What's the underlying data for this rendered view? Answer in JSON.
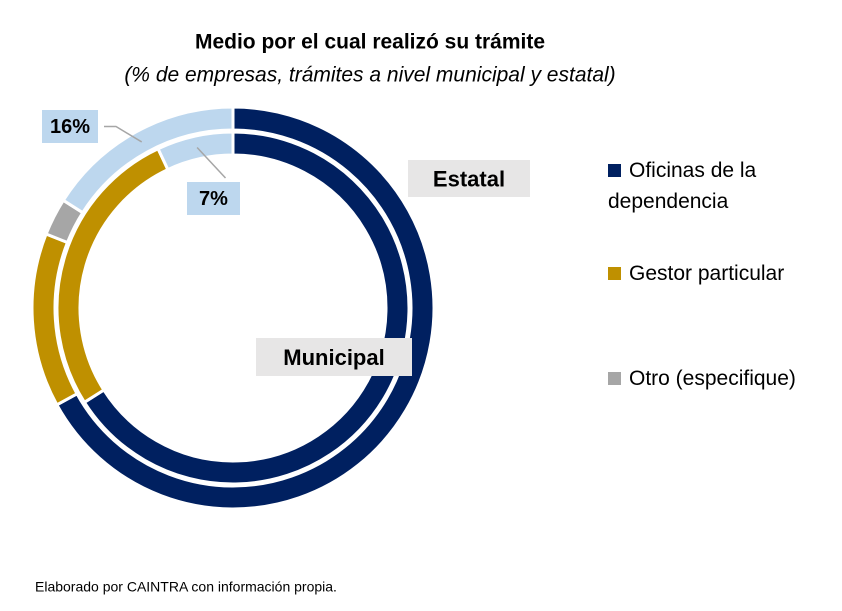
{
  "chart_data": {
    "type": "donut",
    "title": "Medio por el cual realizó su trámite",
    "subtitle": "(% de empresas, trámites a nivel municipal y estatal)",
    "categories": [
      "Oficinas de la dependencia",
      "Gestor particular",
      "Otro (especifique)",
      null
    ],
    "colors": [
      "#002060",
      "#bf9000",
      "#a6a6a6",
      "#bdd7ee"
    ],
    "rings": [
      {
        "name": "Estatal",
        "values": [
          67,
          14,
          3,
          16
        ],
        "value_labels": [
          null,
          null,
          null,
          "16%"
        ]
      },
      {
        "name": "Municipal",
        "values": [
          66,
          27,
          0,
          7
        ],
        "value_labels": [
          null,
          null,
          null,
          "7%"
        ]
      }
    ],
    "footnote": "Elaborado por CAINTRA con información propia."
  }
}
